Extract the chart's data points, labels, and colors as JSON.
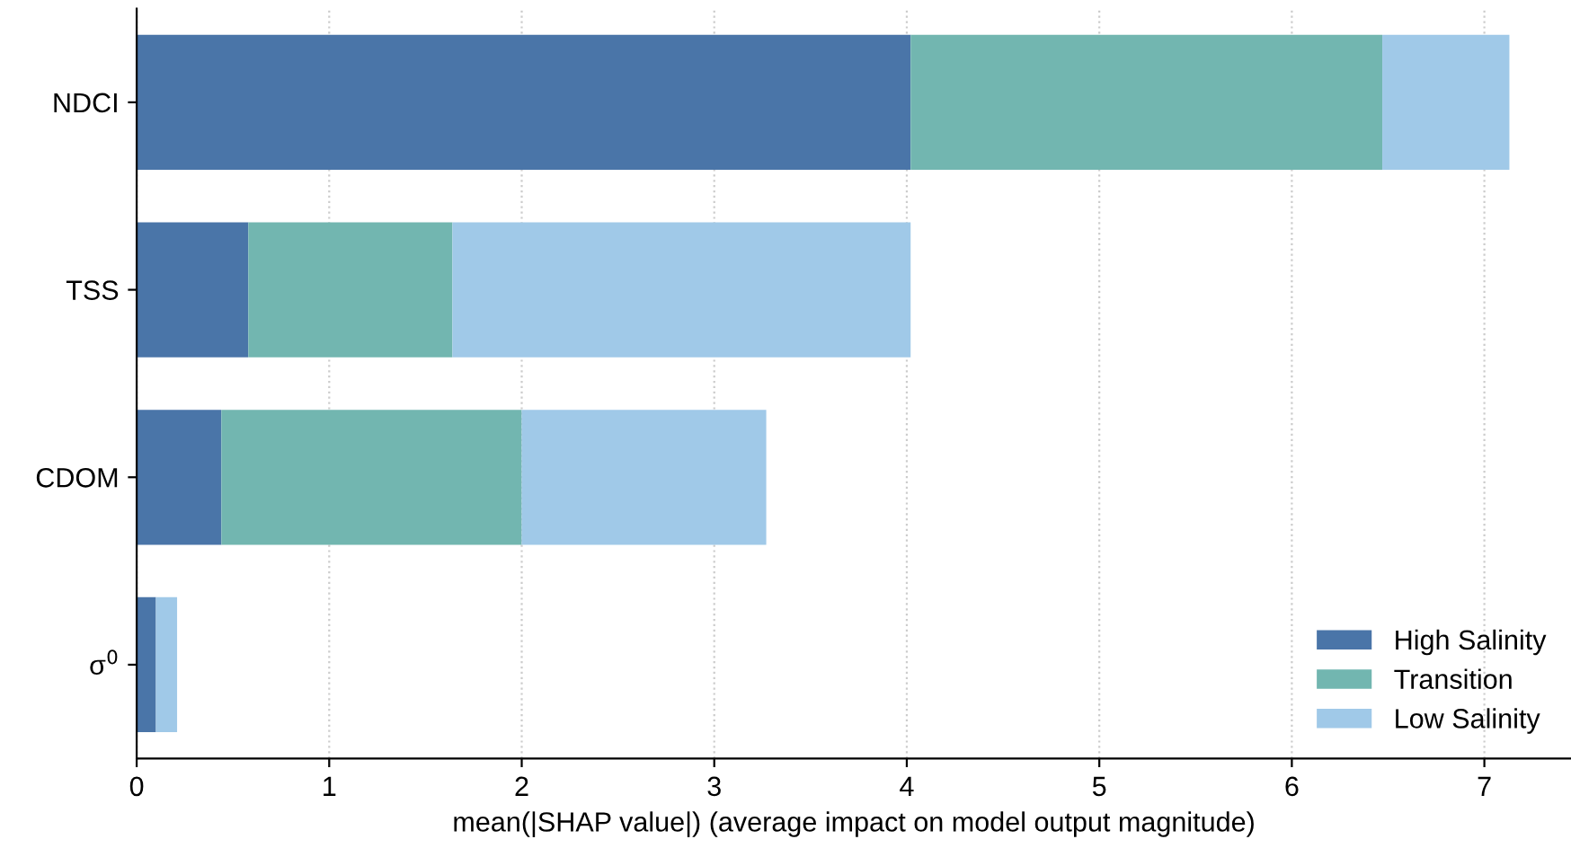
{
  "chart_data": {
    "type": "bar",
    "orientation": "horizontal",
    "stacked": true,
    "categories": [
      "NDCI",
      "TSS",
      "CDOM",
      "σ$^{0}$"
    ],
    "series": [
      {
        "name": "High Salinity",
        "color": "#4a75a8",
        "values": [
          4.02,
          0.58,
          0.44,
          0.1
        ]
      },
      {
        "name": "Transition",
        "color": "#72b6b0",
        "values": [
          2.45,
          1.06,
          1.56,
          0.0
        ]
      },
      {
        "name": "Low Salinity",
        "color": "#a0c9e8",
        "values": [
          0.66,
          2.38,
          1.27,
          0.11
        ]
      }
    ],
    "xlabel": "mean(|SHAP value|) (average impact on model output magnitude)",
    "xlim": [
      0,
      7.45
    ],
    "xticks": [
      0,
      1,
      2,
      3,
      4,
      5,
      6,
      7
    ],
    "grid": "x",
    "legend": "lower right"
  }
}
